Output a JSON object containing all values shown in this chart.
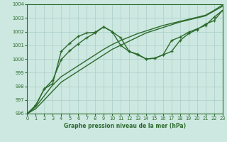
{
  "title": "Graphe pression niveau de la mer (hPa)",
  "background_color": "#cce8e0",
  "grid_color": "#aacfc8",
  "line_color": "#2d6a2d",
  "xlim": [
    0,
    23
  ],
  "ylim": [
    996,
    1004
  ],
  "yticks": [
    996,
    997,
    998,
    999,
    1000,
    1001,
    1002,
    1003,
    1004
  ],
  "xticks": [
    0,
    1,
    2,
    3,
    4,
    5,
    6,
    7,
    8,
    9,
    10,
    11,
    12,
    13,
    14,
    15,
    16,
    17,
    18,
    19,
    20,
    21,
    22,
    23
  ],
  "series": [
    {
      "x": [
        0,
        1,
        2,
        3,
        4,
        5,
        6,
        7,
        8,
        9,
        10,
        11,
        12,
        13,
        14,
        15,
        16,
        17,
        18,
        19,
        20,
        21,
        22,
        23
      ],
      "y": [
        996.0,
        996.35,
        997.0,
        997.65,
        998.3,
        998.7,
        999.1,
        999.5,
        999.9,
        1000.3,
        1000.7,
        1001.0,
        1001.3,
        1001.6,
        1001.9,
        1002.1,
        1002.3,
        1002.5,
        1002.7,
        1002.85,
        1003.0,
        1003.15,
        1003.5,
        1003.85
      ],
      "marker": null,
      "linewidth": 1.0
    },
    {
      "x": [
        0,
        1,
        2,
        3,
        4,
        5,
        6,
        7,
        8,
        9,
        10,
        11,
        12,
        13,
        14,
        15,
        16,
        17,
        18,
        19,
        20,
        21,
        22,
        23
      ],
      "y": [
        996.0,
        996.5,
        997.3,
        998.1,
        998.7,
        999.1,
        999.5,
        999.9,
        1000.3,
        1000.7,
        1001.05,
        1001.35,
        1001.6,
        1001.85,
        1002.05,
        1002.25,
        1002.45,
        1002.6,
        1002.75,
        1002.9,
        1003.05,
        1003.2,
        1003.55,
        1003.95
      ],
      "marker": null,
      "linewidth": 1.0
    },
    {
      "x": [
        0,
        1,
        2,
        3,
        4,
        5,
        6,
        7,
        8,
        9,
        10,
        11,
        12,
        13,
        14,
        15,
        16,
        17,
        18,
        19,
        20,
        21,
        22,
        23
      ],
      "y": [
        996.0,
        996.6,
        997.8,
        998.45,
        999.95,
        1000.6,
        1001.1,
        1001.55,
        1001.9,
        1002.35,
        1002.0,
        1001.55,
        1000.55,
        1000.35,
        1000.0,
        1000.05,
        1000.3,
        1001.35,
        1001.6,
        1001.95,
        1002.2,
        1002.45,
        1003.05,
        1003.55
      ],
      "marker": "+",
      "linewidth": 1.0
    },
    {
      "x": [
        0,
        1,
        2,
        3,
        4,
        5,
        6,
        7,
        8,
        9,
        10,
        11,
        12,
        13,
        14,
        15,
        16,
        17,
        18,
        19,
        20,
        21,
        22,
        23
      ],
      "y": [
        996.0,
        996.6,
        997.8,
        998.2,
        1000.55,
        1001.15,
        1001.65,
        1001.9,
        1001.95,
        1002.35,
        1002.0,
        1001.0,
        1000.55,
        1000.3,
        1000.0,
        1000.05,
        1000.3,
        1000.55,
        1001.35,
        1001.85,
        1002.15,
        1002.55,
        1002.8,
        1003.55
      ],
      "marker": "+",
      "linewidth": 1.0
    }
  ]
}
